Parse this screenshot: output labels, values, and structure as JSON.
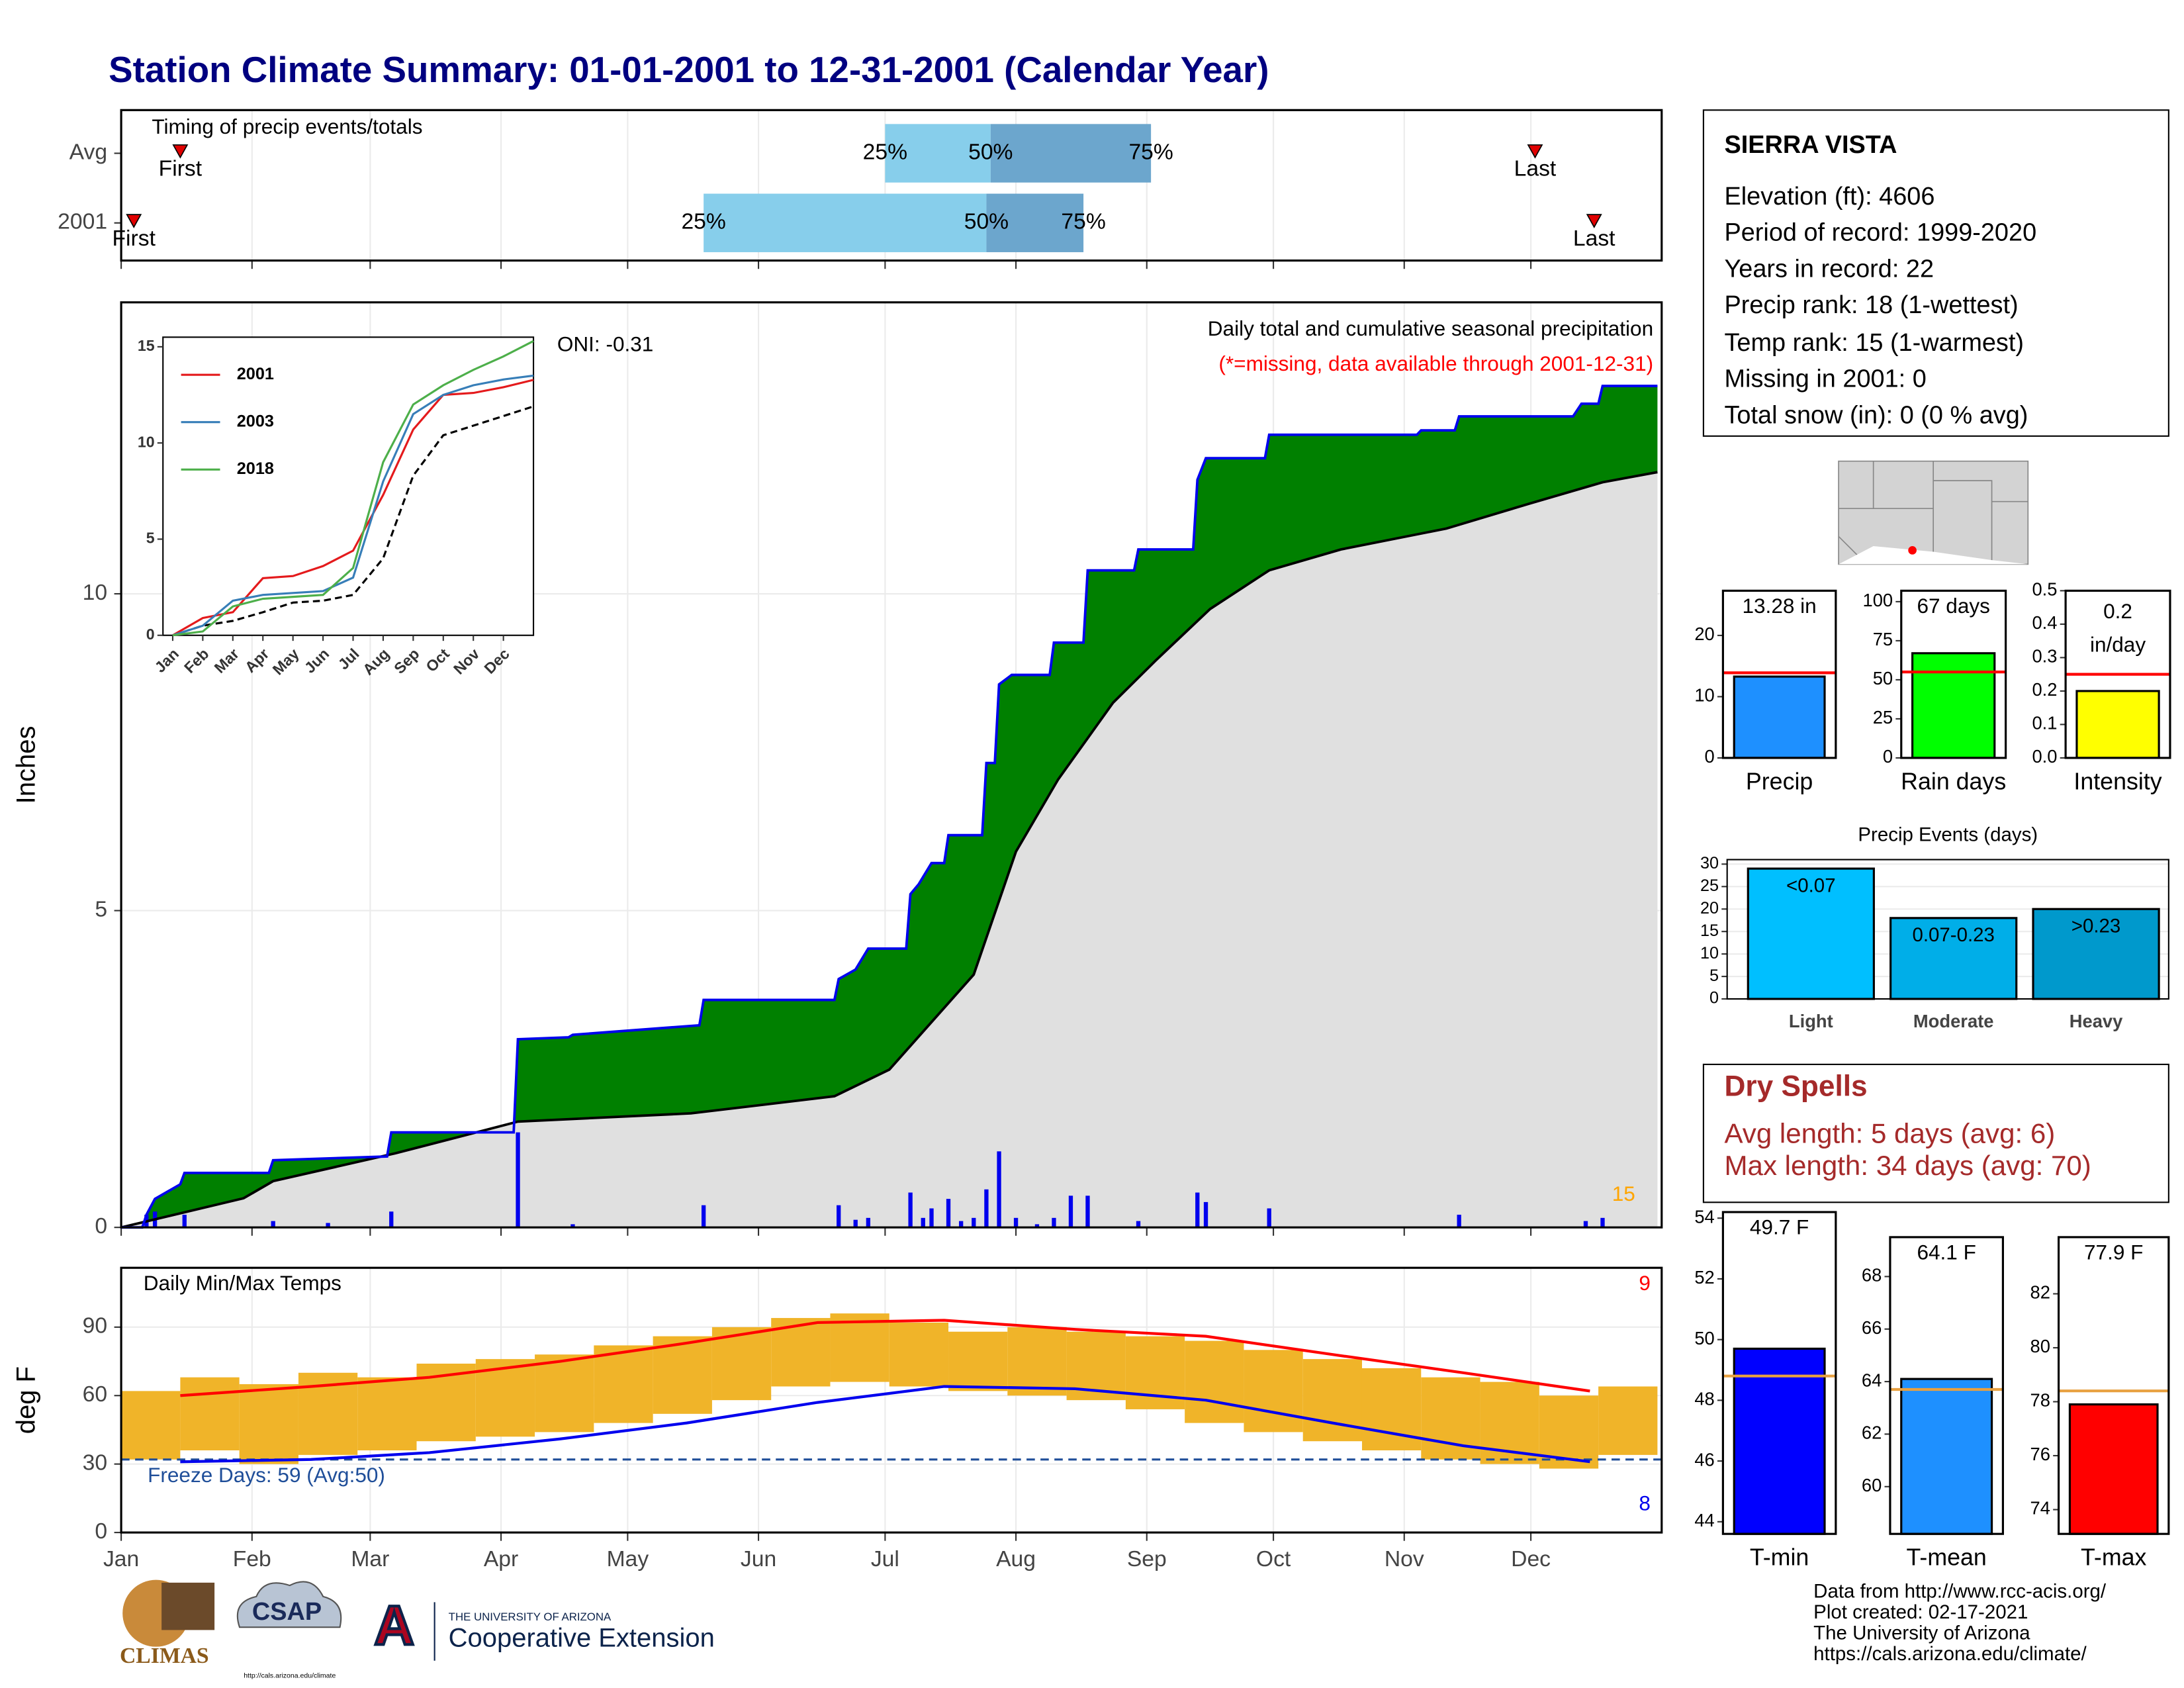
{
  "title": "Station Climate Summary: 01-01-2001 to 12-31-2001 (Calendar Year)",
  "info": {
    "station": "SIERRA VISTA",
    "lines": [
      "Elevation (ft): 4606",
      "Period of record: 1999-2020",
      "Years in record: 22",
      "Precip rank: 18 (1-wettest)",
      "Temp rank: 15 (1-warmest)",
      "Missing in 2001: 0",
      "Total snow (in): 0 (0 % avg)"
    ]
  },
  "dry_spells": {
    "title": "Dry Spells",
    "lines": [
      "Avg length: 5 days (avg: 6)",
      "Max length: 34 days (avg: 70)"
    ]
  },
  "footer": [
    "Data from http://www.rcc-acis.org/",
    "Plot created: 02-17-2021",
    "The University of Arizona",
    "https://cals.arizona.edu/climate/"
  ],
  "logos": {
    "climas": "CLIMAS",
    "csap": "CSAP",
    "csap_url": "http://cals.arizona.edu/climate",
    "university": "THE UNIVERSITY OF ARIZONA",
    "extension": "Cooperative Extension"
  },
  "chart_data": [
    {
      "type": "timing",
      "title": "Timing of precip events/totals",
      "categories": [
        "Avg",
        "2001"
      ],
      "xlim": [
        1,
        366
      ],
      "rows": [
        {
          "first": 15,
          "q25": 182,
          "q50": 207,
          "q75": 245,
          "last": 336
        },
        {
          "first": 4,
          "q25": 139,
          "q50": 206,
          "q75": 229,
          "last": 350
        }
      ],
      "labels": {
        "first": "First",
        "last": "Last",
        "q25": "25%",
        "q50": "50%",
        "q75": "75%"
      },
      "colors": {
        "early": "#87ceeb",
        "late": "#6ca6cd",
        "marker": "#e00000"
      }
    },
    {
      "type": "cumulative",
      "title": "Daily total and cumulative seasonal precipitation",
      "subtitle": "(*=missing, data available through 2001-12-31)",
      "annotation": "ONI: -0.31",
      "count_label": "15",
      "ylabel": "Inches",
      "xlim": [
        1,
        366
      ],
      "ylim": [
        0,
        14.6
      ],
      "yticks": [
        0,
        5,
        10
      ],
      "grid": true,
      "cumulative": {
        "x": [
          1,
          6,
          7,
          9,
          15,
          16,
          36,
          37,
          64,
          65,
          94,
          95,
          107,
          108,
          138,
          139,
          170,
          171,
          175,
          178,
          187,
          188,
          190,
          193,
          196,
          197,
          205,
          206,
          208,
          209,
          212,
          221,
          222,
          229,
          230,
          241,
          242,
          255,
          256,
          258,
          272,
          273,
          308,
          309,
          317,
          318,
          345,
          347,
          351,
          352,
          365
        ],
        "values": [
          0,
          0,
          0.2,
          0.45,
          0.68,
          0.86,
          0.86,
          1.06,
          1.12,
          1.5,
          1.5,
          2.97,
          3.0,
          3.04,
          3.19,
          3.59,
          3.59,
          3.92,
          4.07,
          4.4,
          4.4,
          5.26,
          5.42,
          5.75,
          5.75,
          6.19,
          6.19,
          7.33,
          7.33,
          8.57,
          8.72,
          8.72,
          9.23,
          9.23,
          10.37,
          10.37,
          10.7,
          10.7,
          11.8,
          12.14,
          12.14,
          12.51,
          12.51,
          12.58,
          12.58,
          12.8,
          12.8,
          13.0,
          13.0,
          13.28,
          13.28
        ],
        "color": "#0000ee",
        "fill": "#008000"
      },
      "average": {
        "x": [
          1,
          30,
          37,
          66,
          95,
          136,
          170,
          183,
          203,
          213,
          223,
          236,
          246,
          259,
          273,
          290,
          315,
          335,
          352,
          365
        ],
        "values": [
          0,
          0.46,
          0.73,
          1.17,
          1.67,
          1.8,
          2.07,
          2.49,
          3.99,
          5.93,
          7.07,
          8.28,
          8.94,
          9.76,
          10.37,
          10.7,
          11.03,
          11.43,
          11.76,
          11.92
        ],
        "color": "#000000",
        "fill": "#e0e0e0"
      },
      "daily": {
        "x": [
          7,
          9,
          16,
          37,
          50,
          65,
          95,
          108,
          139,
          171,
          175,
          178,
          188,
          191,
          193,
          197,
          200,
          203,
          206,
          209,
          213,
          218,
          222,
          226,
          230,
          242,
          256,
          258,
          273,
          318,
          348,
          352
        ],
        "values": [
          0.2,
          0.25,
          0.2,
          0.1,
          0.07,
          0.25,
          1.5,
          0.05,
          0.35,
          0.35,
          0.12,
          0.15,
          0.55,
          0.15,
          0.3,
          0.45,
          0.1,
          0.15,
          0.6,
          1.2,
          0.15,
          0.05,
          0.15,
          0.5,
          0.5,
          0.1,
          0.55,
          0.4,
          0.3,
          0.2,
          0.1,
          0.15
        ],
        "color": "#0000ee"
      }
    },
    {
      "type": "line",
      "x": [
        0,
        1,
        2,
        3,
        4,
        5,
        6,
        7,
        8,
        9,
        10,
        11,
        12
      ],
      "xlim": [
        0,
        12
      ],
      "xticks": [
        {
          "value": 0,
          "label": "Jan"
        },
        {
          "value": 1,
          "label": "Feb"
        },
        {
          "value": 2,
          "label": "Mar"
        },
        {
          "value": 3,
          "label": "Apr"
        },
        {
          "value": 4,
          "label": "May"
        },
        {
          "value": 5,
          "label": "Jun"
        },
        {
          "value": 6,
          "label": "Jul"
        },
        {
          "value": 7,
          "label": "Aug"
        },
        {
          "value": 8,
          "label": "Sep"
        },
        {
          "value": 9,
          "label": "Oct"
        },
        {
          "value": 10,
          "label": "Nov"
        },
        {
          "value": 11,
          "label": "Dec"
        }
      ],
      "ylim": [
        0,
        15.5
      ],
      "yticks": [
        0,
        5,
        10,
        15
      ],
      "series": [
        {
          "name": "2001",
          "color": "#e41a1c",
          "values": [
            0,
            0.9,
            1.2,
            2.97,
            3.08,
            3.6,
            4.4,
            7.3,
            10.7,
            12.5,
            12.6,
            12.9,
            13.28
          ]
        },
        {
          "name": "2003",
          "color": "#377eb8",
          "values": [
            0,
            0.5,
            1.8,
            2.1,
            2.2,
            2.3,
            3.0,
            8.0,
            11.5,
            12.5,
            13.0,
            13.3,
            13.5
          ]
        },
        {
          "name": "2018",
          "color": "#4daf4a",
          "values": [
            0,
            0.2,
            1.5,
            1.9,
            2.0,
            2.1,
            3.5,
            9.0,
            12.0,
            13.0,
            13.8,
            14.5,
            15.3
          ]
        }
      ],
      "average": {
        "color": "#000000",
        "values": [
          0,
          0.5,
          0.75,
          1.2,
          1.7,
          1.8,
          2.1,
          4.0,
          8.3,
          10.4,
          10.9,
          11.4,
          11.9
        ]
      }
    },
    {
      "type": "temperature",
      "title": "Daily Min/Max Temps",
      "ylabel": "deg F",
      "xlim": [
        1,
        366
      ],
      "xticks": [
        {
          "value": 1,
          "label": "Jan"
        },
        {
          "value": 32,
          "label": "Feb"
        },
        {
          "value": 60,
          "label": "Mar"
        },
        {
          "value": 91,
          "label": "Apr"
        },
        {
          "value": 121,
          "label": "May"
        },
        {
          "value": 152,
          "label": "Jun"
        },
        {
          "value": 182,
          "label": "Jul"
        },
        {
          "value": 213,
          "label": "Aug"
        },
        {
          "value": 244,
          "label": "Sep"
        },
        {
          "value": 274,
          "label": "Oct"
        },
        {
          "value": 305,
          "label": "Nov"
        },
        {
          "value": 335,
          "label": "Dec"
        }
      ],
      "ylim": [
        0,
        116
      ],
      "yticks": [
        0,
        30,
        60,
        90
      ],
      "grid": true,
      "freeze_label": "Freeze Days: 59 (Avg:50)",
      "freeze_threshold": 32,
      "max_count_label": "9",
      "min_count_label": "8",
      "avg_max": {
        "x": [
          15,
          46,
          74,
          105,
          135,
          166,
          196,
          227,
          258,
          288,
          319,
          349
        ],
        "values": [
          60,
          64,
          68,
          75,
          83,
          92,
          93,
          89,
          86,
          78,
          70,
          62
        ],
        "color": "#ff0000"
      },
      "avg_min": {
        "x": [
          15,
          46,
          74,
          105,
          135,
          166,
          196,
          227,
          258,
          288,
          319,
          349
        ],
        "values": [
          31,
          32,
          35,
          41,
          48,
          57,
          64,
          63,
          58,
          48,
          38,
          31
        ],
        "color": "#0000ee"
      },
      "daily": {
        "x": [
          1,
          15,
          29,
          43,
          57,
          71,
          85,
          99,
          113,
          127,
          141,
          155,
          169,
          183,
          197,
          211,
          225,
          239,
          253,
          267,
          281,
          295,
          309,
          323,
          337,
          351
        ],
        "max": [
          62,
          68,
          65,
          70,
          68,
          74,
          76,
          78,
          82,
          86,
          90,
          94,
          96,
          92,
          88,
          90,
          88,
          86,
          84,
          80,
          76,
          72,
          68,
          66,
          60,
          64
        ],
        "min": [
          32,
          36,
          30,
          34,
          36,
          40,
          42,
          44,
          48,
          52,
          58,
          64,
          66,
          64,
          62,
          60,
          58,
          54,
          48,
          44,
          40,
          36,
          32,
          30,
          28,
          34
        ],
        "width": 14,
        "color": "#f0b429"
      }
    },
    {
      "type": "bar",
      "categories": [
        "Precip"
      ],
      "values": [
        13.28
      ],
      "value_labels": [
        "13.28 in"
      ],
      "average": 13.9,
      "average_color": "#ff0000",
      "color": "#1e90ff",
      "ylim": [
        0,
        27.3
      ],
      "yticks": [
        0,
        10,
        20
      ]
    },
    {
      "type": "bar",
      "categories": [
        "Rain days"
      ],
      "values": [
        67
      ],
      "value_labels": [
        "67 days"
      ],
      "average": 55,
      "average_color": "#ff0000",
      "color": "#00ff00",
      "ylim": [
        0,
        107
      ],
      "yticks": [
        0,
        25,
        50,
        75,
        100
      ]
    },
    {
      "type": "bar",
      "categories": [
        "Intensity"
      ],
      "values": [
        0.2
      ],
      "value_labels": [
        "0.2 in/day"
      ],
      "average": 0.25,
      "average_color": "#ff0000",
      "color": "#ffff00",
      "ylim": [
        0,
        0.5
      ],
      "yticks": [
        {
          "value": 0,
          "label": "0.0"
        },
        0.1,
        0.2,
        0.3,
        0.4,
        0.5
      ]
    },
    {
      "type": "events",
      "title": "Precip Events (days)",
      "categories": [
        "Light",
        "Moderate",
        "Heavy"
      ],
      "ranges": [
        "<0.07",
        "0.07-0.23",
        ">0.23"
      ],
      "values": [
        29,
        18,
        20
      ],
      "colors": [
        "#00bfff",
        "#00aee8",
        "#0099cc"
      ],
      "ylim": [
        0,
        31
      ],
      "yticks": [
        0,
        5,
        10,
        15,
        20,
        25,
        30
      ],
      "grid": true
    },
    {
      "type": "bar",
      "categories": [
        "T-min"
      ],
      "values": [
        49.7
      ],
      "value_labels": [
        "49.7 F"
      ],
      "average": 48.8,
      "average_color": "#e8a040",
      "color": "#0000ff",
      "ylim": [
        43.6,
        54.2
      ],
      "yticks": [
        44,
        46,
        48,
        50,
        52,
        54
      ]
    },
    {
      "type": "bar",
      "categories": [
        "T-mean"
      ],
      "values": [
        64.1
      ],
      "value_labels": [
        "64.1 F"
      ],
      "average": 63.7,
      "average_color": "#e8a040",
      "color": "#1e90ff",
      "ylim": [
        58.2,
        69.5
      ],
      "yticks": [
        60,
        62,
        64,
        66,
        68
      ]
    },
    {
      "type": "bar",
      "categories": [
        "T-max"
      ],
      "values": [
        77.9
      ],
      "value_labels": [
        "77.9 F"
      ],
      "average": 78.4,
      "average_color": "#e8a040",
      "color": "#ff0000",
      "ylim": [
        73.1,
        84.1
      ],
      "yticks": [
        74,
        76,
        78,
        80,
        82
      ]
    }
  ]
}
